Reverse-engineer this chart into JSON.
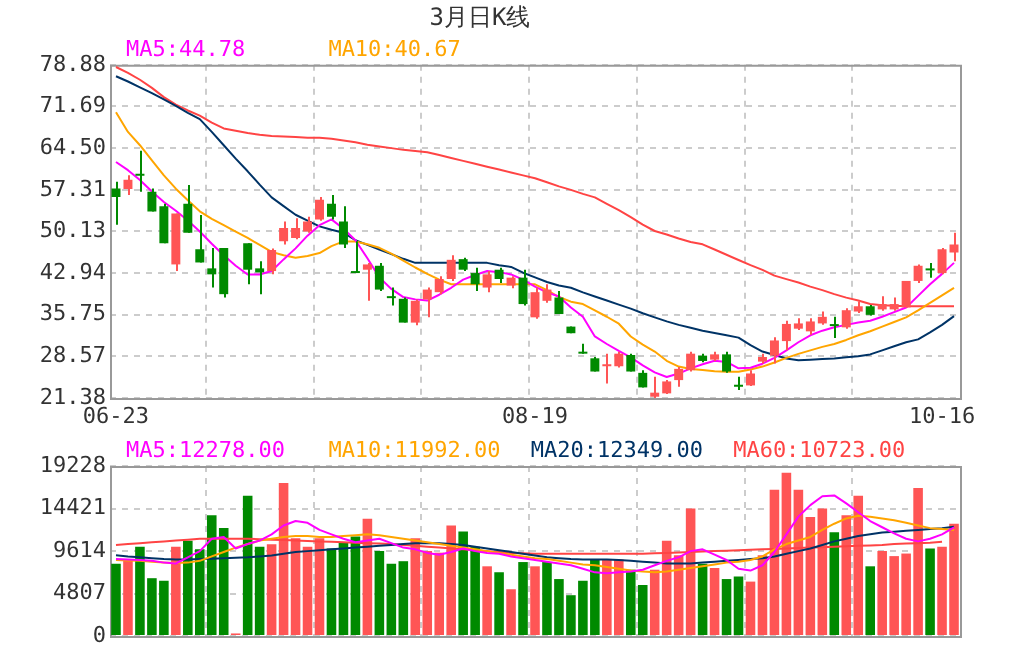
{
  "chart_data": [
    {
      "type": "candlestick",
      "title": "3月日K线",
      "categories": [
        "06-23",
        null,
        null,
        null,
        null,
        null,
        null,
        null,
        null,
        null,
        null,
        null,
        null,
        null,
        null,
        null,
        null,
        null,
        null,
        null,
        null,
        null,
        null,
        null,
        null,
        null,
        null,
        null,
        null,
        null,
        null,
        null,
        null,
        null,
        null,
        "08-19",
        null,
        null,
        null,
        null,
        null,
        null,
        null,
        null,
        null,
        null,
        null,
        null,
        null,
        null,
        null,
        null,
        null,
        null,
        null,
        null,
        null,
        null,
        null,
        null,
        null,
        null,
        null,
        null,
        null,
        null,
        null,
        null,
        null,
        "10-16",
        null
      ],
      "ohlc": [
        [
          57.55,
          58.69,
          51.27,
          56.06
        ],
        [
          57.43,
          59.83,
          56.41,
          59.03
        ],
        [
          60.06,
          64.05,
          56.98,
          59.72
        ],
        [
          56.98,
          57.55,
          53.55,
          53.55
        ],
        [
          54.47,
          54.92,
          48.08,
          48.08
        ],
        [
          44.43,
          53.21,
          43.29,
          53.21
        ],
        [
          54.92,
          58.12,
          49.9,
          49.9
        ],
        [
          47.05,
          52.98,
          44.77,
          44.77
        ],
        [
          43.75,
          47.28,
          40.44,
          42.72
        ],
        [
          47.28,
          47.28,
          38.72,
          39.3
        ],
        null,
        [
          48.08,
          48.08,
          41.01,
          43.52
        ],
        [
          43.75,
          45.0,
          39.3,
          43.06
        ],
        [
          43.29,
          47.17,
          42.72,
          46.94
        ],
        [
          48.42,
          51.84,
          47.85,
          50.7
        ],
        [
          48.99,
          52.41,
          48.76,
          50.7
        ],
        [
          50.13,
          52.64,
          49.9,
          51.84
        ],
        [
          52.19,
          56.06,
          51.96,
          55.61
        ],
        [
          54.92,
          56.41,
          52.19,
          52.64
        ],
        [
          51.84,
          54.47,
          47.28,
          47.85
        ],
        [
          43.17,
          48.42,
          42.94,
          42.94
        ],
        [
          43.52,
          44.66,
          38.15,
          44.43
        ],
        [
          44.2,
          44.66,
          39.86,
          40.09
        ],
        [
          38.84,
          40.44,
          37.36,
          38.61
        ],
        [
          38.5,
          38.72,
          34.39,
          34.39
        ],
        [
          34.39,
          38.38,
          33.93,
          38.15
        ],
        [
          38.38,
          40.44,
          35.3,
          40.09
        ],
        [
          39.64,
          42.38,
          39.3,
          41.92
        ],
        [
          41.92,
          46.03,
          41.58,
          45.23
        ],
        [
          45.34,
          45.57,
          43.29,
          43.52
        ],
        [
          42.94,
          43.86,
          39.86,
          41.01
        ],
        [
          40.44,
          43.29,
          39.64,
          42.72
        ],
        [
          43.52,
          43.86,
          41.24,
          41.92
        ],
        [
          40.78,
          42.38,
          40.32,
          42.15
        ],
        [
          42.15,
          43.52,
          37.36,
          37.59
        ],
        [
          35.3,
          40.44,
          35.07,
          39.64
        ],
        [
          38.15,
          41.01,
          37.81,
          40.09
        ],
        [
          38.72,
          39.86,
          35.87,
          35.87
        ],
        [
          33.7,
          33.7,
          32.56,
          32.56
        ],
        [
          29.26,
          30.74,
          29.03,
          29.03
        ],
        [
          28.23,
          28.46,
          25.95,
          25.95
        ],
        [
          26.86,
          29.03,
          23.89,
          27.09
        ],
        [
          26.86,
          29.37,
          26.63,
          29.03
        ],
        [
          28.8,
          29.03,
          25.95,
          25.95
        ],
        [
          25.72,
          26.18,
          23.21,
          23.21
        ],
        [
          21.6,
          25.04,
          21.4,
          22.3
        ],
        [
          22.18,
          24.47,
          22.07,
          24.24
        ],
        [
          24.47,
          26.75,
          23.32,
          26.41
        ],
        [
          26.18,
          29.37,
          25.95,
          29.03
        ],
        [
          28.69,
          29.03,
          27.55,
          27.77
        ],
        [
          28.0,
          29.37,
          27.77,
          28.91
        ],
        [
          28.91,
          29.37,
          25.72,
          25.95
        ],
        [
          23.67,
          25.04,
          22.75,
          23.32
        ],
        [
          23.55,
          26.18,
          23.44,
          25.61
        ],
        [
          27.66,
          29.03,
          27.32,
          28.46
        ],
        [
          28.69,
          31.88,
          27.32,
          31.31
        ],
        [
          31.2,
          34.73,
          29.6,
          34.16
        ],
        [
          33.34,
          35.16,
          33.11,
          34.25
        ],
        [
          32.88,
          35.16,
          32.31,
          34.59
        ],
        [
          34.25,
          36.3,
          34.02,
          35.39
        ],
        [
          34.13,
          35.39,
          31.74,
          33.79
        ],
        [
          33.57,
          36.87,
          33.34,
          36.53
        ],
        [
          36.3,
          38.02,
          36.07,
          37.21
        ],
        [
          37.21,
          37.44,
          35.62,
          35.73
        ],
        [
          36.67,
          38.96,
          36.45,
          37.59
        ],
        [
          36.67,
          38.73,
          36.45,
          37.59
        ],
        [
          37.01,
          41.58,
          37.01,
          41.58
        ],
        [
          41.58,
          44.43,
          41.24,
          44.2
        ],
        [
          43.63,
          44.66,
          42.15,
          43.4
        ],
        [
          42.94,
          47.28,
          42.72,
          47.05
        ],
        [
          46.48,
          49.9,
          45.0,
          47.85
        ]
      ],
      "colors": [
        "#008a00",
        "#ff5555",
        "#008a00",
        "#008a00",
        "#008a00",
        "#ff5555",
        "#008a00",
        "#008a00",
        "#008a00",
        "#008a00",
        null,
        "#008a00",
        "#008a00",
        "#ff5555",
        "#ff5555",
        "#ff5555",
        "#ff5555",
        "#ff5555",
        "#008a00",
        "#008a00",
        "#008a00",
        "#ff5555",
        "#008a00",
        "#008a00",
        "#008a00",
        "#ff5555",
        "#ff5555",
        "#ff5555",
        "#ff5555",
        "#008a00",
        "#008a00",
        "#ff5555",
        "#008a00",
        "#ff5555",
        "#008a00",
        "#ff5555",
        "#ff5555",
        "#008a00",
        "#008a00",
        "#008a00",
        "#008a00",
        "#ff5555",
        "#ff5555",
        "#008a00",
        "#008a00",
        "#ff5555",
        "#ff5555",
        "#ff5555",
        "#ff5555",
        "#008a00",
        "#ff5555",
        "#008a00",
        "#008a00",
        "#ff5555",
        "#ff5555",
        "#ff5555",
        "#ff5555",
        "#ff5555",
        "#ff5555",
        "#ff5555",
        "#008a00",
        "#ff5555",
        "#ff5555",
        "#008a00",
        "#ff5555",
        "#ff5555",
        "#ff5555",
        "#ff5555",
        "#008a00",
        "#ff5555",
        "#ff5555"
      ],
      "series": [
        {
          "type": "line",
          "name": "MA5:44.78",
          "color": "#ff00ff",
          "values": [
            62.1,
            60.7,
            59.0,
            57.0,
            55.2,
            53.7,
            52.0,
            50.1,
            48.0,
            46.0,
            44.2,
            42.7,
            42.7,
            43.3,
            45.3,
            47.2,
            49.4,
            51.2,
            52.2,
            50.6,
            48.6,
            45.5,
            42.2,
            40.2,
            38.8,
            38.4,
            38.2,
            39.2,
            40.4,
            41.8,
            42.6,
            43.3,
            43.1,
            42.7,
            41.8,
            40.6,
            39.6,
            38.9,
            37.0,
            35.4,
            32.0,
            30.7,
            29.5,
            28.4,
            27.0,
            25.8,
            25.0,
            25.6,
            26.5,
            27.2,
            27.8,
            27.6,
            26.5,
            26.6,
            27.3,
            28.3,
            29.6,
            31.0,
            32.2,
            33.0,
            33.6,
            34.0,
            34.4,
            34.7,
            35.4,
            36.2,
            37.0,
            39.0,
            41.0,
            42.8,
            44.7
          ]
        },
        {
          "type": "line",
          "name": "MA10:40.67",
          "color": "#ffa500",
          "values": [
            70.7,
            67.3,
            65.0,
            62.4,
            59.8,
            57.5,
            55.5,
            53.6,
            52.3,
            51.2,
            50.1,
            49.0,
            47.8,
            46.6,
            46.0,
            45.6,
            45.9,
            46.4,
            47.6,
            48.4,
            48.4,
            47.9,
            47.3,
            46.3,
            45.1,
            43.9,
            42.8,
            41.8,
            41.0,
            41.0,
            41.0,
            41.0,
            41.0,
            41.0,
            41.0,
            41.0,
            40.0,
            38.8,
            38.0,
            37.6,
            36.5,
            35.4,
            34.2,
            32.0,
            30.6,
            29.4,
            27.8,
            26.8,
            26.4,
            26.2,
            26.0,
            25.9,
            25.9,
            26.3,
            26.8,
            27.5,
            28.3,
            29.0,
            29.6,
            30.2,
            30.7,
            31.4,
            32.2,
            32.9,
            33.7,
            34.5,
            35.3,
            36.5,
            37.8,
            39.1,
            40.4
          ]
        },
        {
          "type": "line",
          "color": "#003366",
          "values": [
            76.9,
            76.0,
            75.0,
            74.0,
            72.9,
            71.8,
            70.6,
            69.5,
            67.3,
            65.0,
            62.7,
            60.5,
            58.2,
            56.0,
            54.5,
            53.0,
            52.0,
            51.0,
            50.4,
            49.9,
            48.6,
            47.8,
            47.0,
            46.2,
            45.4,
            44.7,
            44.7,
            44.7,
            44.7,
            44.7,
            44.7,
            44.7,
            44.3,
            44.0,
            43.0,
            42.2,
            41.4,
            40.8,
            40.4,
            39.6,
            38.9,
            38.2,
            37.5,
            36.8,
            36.0,
            35.3,
            34.6,
            34.0,
            33.5,
            33.0,
            32.6,
            32.2,
            31.8,
            30.5,
            29.4,
            28.8,
            28.2,
            27.9,
            28.0,
            28.1,
            28.2,
            28.4,
            28.6,
            28.9,
            29.6,
            30.3,
            31.0,
            31.5,
            32.7,
            34.0,
            35.5
          ]
        },
        {
          "type": "line",
          "color": "#ff4444",
          "values": [
            78.5,
            77.5,
            76.3,
            74.9,
            73.3,
            72.0,
            71.0,
            70.1,
            68.9,
            67.9,
            67.5,
            67.1,
            66.8,
            66.6,
            66.5,
            66.4,
            66.3,
            66.3,
            66.1,
            65.8,
            65.5,
            65.1,
            64.8,
            64.5,
            64.2,
            64.0,
            63.8,
            63.3,
            62.8,
            62.3,
            61.8,
            61.3,
            60.8,
            60.3,
            59.8,
            59.3,
            58.6,
            57.9,
            57.3,
            56.6,
            56.0,
            54.9,
            53.8,
            52.6,
            51.3,
            50.2,
            49.6,
            48.9,
            48.3,
            47.9,
            47.0,
            46.1,
            45.2,
            44.3,
            43.5,
            42.5,
            41.9,
            41.3,
            40.6,
            40.0,
            39.3,
            38.7,
            38.2,
            37.6,
            37.4,
            37.3,
            37.2,
            37.2,
            37.2,
            37.2,
            37.2
          ]
        }
      ],
      "ylim": [
        21.38,
        78.88
      ],
      "yticks": [
        21.38,
        28.57,
        35.75,
        42.94,
        50.13,
        57.31,
        {
          "value": 64.5,
          "label": "64.50"
        },
        71.69,
        78.88
      ],
      "grid": true,
      "legend": "top left",
      "marker": "none"
    },
    {
      "type": "bar",
      "categories": [
        null,
        null,
        null,
        null,
        null,
        null,
        null,
        null,
        null,
        null,
        null,
        null,
        null,
        null,
        null,
        null,
        null,
        null,
        null,
        null,
        null,
        null,
        null,
        null,
        null,
        null,
        null,
        null,
        null,
        null,
        null,
        null,
        null,
        null,
        null,
        null,
        null,
        null,
        null,
        null,
        null,
        null,
        null,
        null,
        null,
        null,
        null,
        null,
        null,
        null,
        null,
        null,
        null,
        null,
        null,
        null,
        null,
        null,
        null,
        null,
        null,
        null,
        null,
        null,
        null,
        null,
        null,
        null,
        null,
        null,
        null
      ],
      "series": [
        {
          "type": "bar",
          "colors": [
            "#008a00",
            "#ff5555",
            "#008a00",
            "#008a00",
            "#008a00",
            "#ff5555",
            "#008a00",
            "#008a00",
            "#008a00",
            "#008a00",
            "#ff5555",
            "#008a00",
            "#008a00",
            "#ff5555",
            "#ff5555",
            "#ff5555",
            "#ff5555",
            "#ff5555",
            "#008a00",
            "#008a00",
            "#008a00",
            "#ff5555",
            "#008a00",
            "#008a00",
            "#008a00",
            "#ff5555",
            "#ff5555",
            "#ff5555",
            "#ff5555",
            "#008a00",
            "#008a00",
            "#ff5555",
            "#008a00",
            "#ff5555",
            "#008a00",
            "#ff5555",
            "#008a00",
            "#008a00",
            "#008a00",
            "#008a00",
            "#008a00",
            "#ff5555",
            "#ff5555",
            "#008a00",
            "#008a00",
            "#ff5555",
            "#ff5555",
            "#ff5555",
            "#ff5555",
            "#008a00",
            "#ff5555",
            "#008a00",
            "#008a00",
            "#ff5555",
            "#ff5555",
            "#ff5555",
            "#ff5555",
            "#ff5555",
            "#ff5555",
            "#ff5555",
            "#008a00",
            "#ff5555",
            "#ff5555",
            "#008a00",
            "#ff5555",
            "#ff5555",
            "#ff5555",
            "#ff5555",
            "#008a00",
            "#ff5555",
            "#ff5555"
          ],
          "values": [
            8172,
            8653,
            10095,
            6538,
            6249,
            10095,
            10768,
            9806,
            13652,
            12210,
            288,
            15863,
            10095,
            10383,
            17305,
            11056,
            10095,
            11056,
            9902,
            10575,
            11248,
            13267,
            9614,
            8172,
            8460,
            11056,
            9614,
            9422,
            12498,
            11825,
            10095,
            7883,
            7211,
            5288,
            8364,
            7883,
            8364,
            6441,
            4615,
            6249,
            8653,
            8653,
            8653,
            7499,
            5768,
            7499,
            10768,
            9133,
            14421,
            8172,
            7691,
            6441,
            6730,
            6153,
            9133,
            16536,
            18459,
            16536,
            13460,
            14421,
            11729,
            13652,
            15863,
            7883,
            9614,
            9037,
            9326,
            16728,
            9902,
            10095,
            12690
          ]
        },
        {
          "type": "line",
          "name": "MA5:12278.00",
          "color": "#ff00ff",
          "values": [
            8700,
            8650,
            8600,
            8500,
            8300,
            8200,
            8900,
            9600,
            11000,
            11200,
            9900,
            10400,
            10800,
            11500,
            12500,
            13000,
            12800,
            12000,
            11500,
            11000,
            10600,
            10800,
            11000,
            10500,
            10000,
            9800,
            9400,
            9200,
            9500,
            9900,
            9600,
            9400,
            9300,
            9000,
            8800,
            8600,
            8400,
            8200,
            8000,
            7600,
            7200,
            7100,
            7200,
            7300,
            7500,
            8000,
            8500,
            8900,
            9600,
            9800,
            9200,
            8600,
            7600,
            7400,
            8000,
            9500,
            11500,
            13500,
            14800,
            15800,
            15900,
            15000,
            14000,
            13000,
            12300,
            11600,
            11000,
            10700,
            11000,
            11500,
            12278
          ]
        },
        {
          "type": "line",
          "name": "MA10:11992.00",
          "color": "#ffa500",
          "values": [
            8600,
            8550,
            8500,
            8400,
            8300,
            8250,
            8300,
            8500,
            9000,
            9500,
            10000,
            10400,
            10800,
            11000,
            11200,
            11300,
            11300,
            11200,
            11200,
            11300,
            11400,
            11500,
            11400,
            11200,
            11000,
            10800,
            10600,
            10400,
            10200,
            10000,
            9800,
            9600,
            9400,
            9200,
            9000,
            8800,
            8700,
            8500,
            8300,
            8100,
            8000,
            7800,
            7600,
            7400,
            7300,
            7200,
            7300,
            7500,
            7700,
            7900,
            8100,
            8300,
            8400,
            8600,
            9000,
            9800,
            10400,
            10800,
            11200,
            12000,
            12700,
            13300,
            13600,
            13500,
            13300,
            13100,
            12800,
            12500,
            12200,
            12100,
            11992
          ]
        },
        {
          "type": "line",
          "name": "MA20:12349.00",
          "color": "#003366",
          "values": [
            9133,
            9000,
            8900,
            8800,
            8700,
            8650,
            8650,
            8700,
            8750,
            8800,
            8850,
            8900,
            9000,
            9100,
            9300,
            9500,
            9600,
            9700,
            9800,
            9900,
            10000,
            10100,
            10200,
            10300,
            10400,
            10500,
            10500,
            10500,
            10400,
            10300,
            10100,
            9900,
            9700,
            9500,
            9300,
            9100,
            8900,
            8800,
            8700,
            8650,
            8650,
            8650,
            8600,
            8500,
            8400,
            8300,
            8200,
            8200,
            8200,
            8300,
            8400,
            8500,
            8600,
            8700,
            8800,
            9000,
            9300,
            9600,
            9900,
            10300,
            10700,
            11000,
            11300,
            11500,
            11700,
            11800,
            11900,
            12000,
            12100,
            12200,
            12349
          ]
        },
        {
          "type": "line",
          "name": "MA60:10723.00",
          "color": "#ff4444",
          "values": [
            10300,
            10400,
            10500,
            10600,
            10700,
            10800,
            10900,
            11000,
            11000,
            11000,
            11000,
            11000,
            10950,
            10900,
            10850,
            10800,
            10750,
            10700,
            10650,
            10600,
            10550,
            10500,
            10450,
            10400,
            10300,
            10200,
            10100,
            10000,
            9900,
            9800,
            9700,
            9600,
            9500,
            9400,
            9350,
            9300,
            9300,
            9300,
            9300,
            9300,
            9300,
            9300,
            9300,
            9300,
            9300,
            9350,
            9400,
            9450,
            9500,
            9550,
            9600,
            9650,
            9700,
            9750,
            9800,
            9850,
            9900,
            9950,
            10000,
            10050,
            10100,
            10150,
            10200,
            10250,
            10300,
            10400,
            10450,
            10500,
            10550,
            10650,
            null
          ]
        }
      ],
      "ylim": [
        0,
        19228
      ],
      "yticks": [
        0,
        4807,
        9614,
        14421,
        19228
      ],
      "grid": true,
      "legend": "top left",
      "marker": "none",
      "tick_labels": "y"
    }
  ]
}
